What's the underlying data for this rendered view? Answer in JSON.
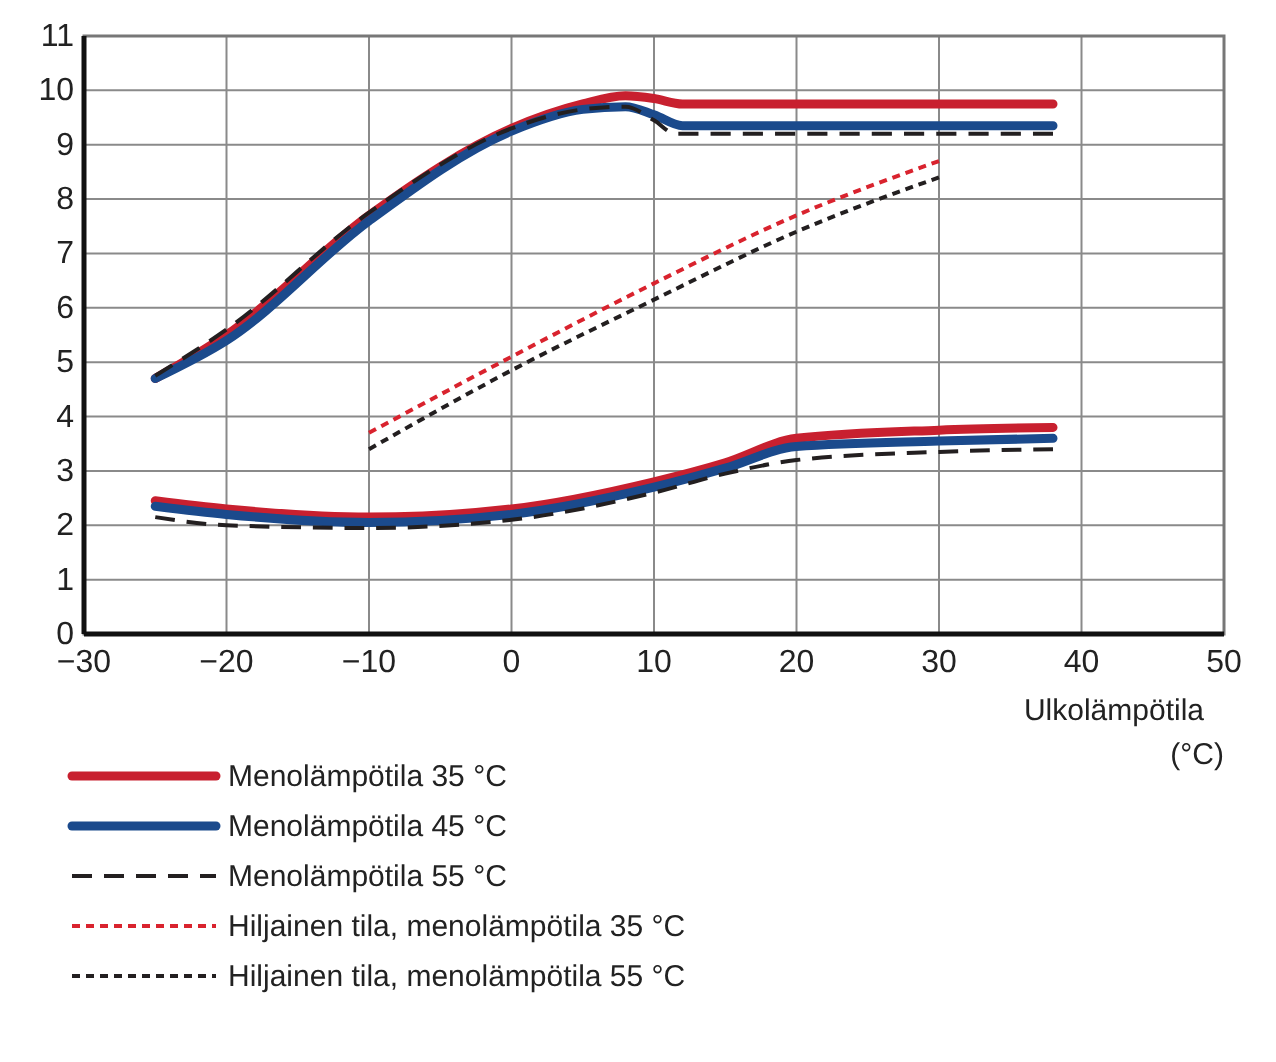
{
  "chart_data": {
    "type": "line",
    "xlabel": "Ulkolämpötila (°C)",
    "xlim": [
      -30,
      50
    ],
    "ylim": [
      0,
      11
    ],
    "xticks": [
      -30,
      -20,
      -10,
      0,
      10,
      20,
      30,
      40,
      50
    ],
    "yticks": [
      0,
      1,
      2,
      3,
      4,
      5,
      6,
      7,
      8,
      9,
      10,
      11
    ],
    "grid": true,
    "legend": "bottom",
    "series": [
      {
        "name": "Menolämpötila 35 °C",
        "color": "#c8202f",
        "line_style": "solid",
        "x": [
          -25,
          -20,
          -10,
          0,
          5,
          8,
          10,
          12,
          38
        ],
        "values": [
          4.7,
          5.5,
          7.7,
          9.3,
          9.75,
          9.9,
          9.85,
          9.75,
          9.75
        ]
      },
      {
        "name": "Menolämpötila 45 °C",
        "color": "#1b4a8c",
        "line_style": "solid",
        "x": [
          -25,
          -20,
          -10,
          0,
          5,
          8,
          10,
          12,
          38
        ],
        "values": [
          4.7,
          5.4,
          7.6,
          9.25,
          9.65,
          9.7,
          9.55,
          9.35,
          9.35
        ]
      },
      {
        "name": "Menolämpötila 55 °C",
        "color": "#231f20",
        "line_style": "dashed",
        "x": [
          -25,
          -20,
          -10,
          0,
          5,
          8,
          10,
          11.5,
          38
        ],
        "values": [
          4.75,
          5.6,
          7.75,
          9.3,
          9.65,
          9.7,
          9.45,
          9.2,
          9.2
        ]
      },
      {
        "name": "Hiljainen tila, menolämpötila 35 °C",
        "color": "#d9232e",
        "line_style": "dotted",
        "x": [
          -10,
          0,
          10,
          20,
          30
        ],
        "values": [
          3.7,
          5.1,
          6.45,
          7.7,
          8.7
        ]
      },
      {
        "name": "Hiljainen tila, menolämpötila 55 °C",
        "color": "#231f20",
        "line_style": "dotted",
        "x": [
          -10,
          0,
          10,
          20,
          30
        ],
        "values": [
          3.4,
          4.85,
          6.15,
          7.4,
          8.4
        ]
      },
      {
        "color": "#c8202f",
        "line_style": "solid",
        "x": [
          -25,
          -20,
          -10,
          0,
          10,
          15,
          20,
          30,
          38
        ],
        "values": [
          2.45,
          2.3,
          2.15,
          2.3,
          2.8,
          3.15,
          3.6,
          3.75,
          3.8
        ]
      },
      {
        "color": "#1b4a8c",
        "line_style": "solid",
        "x": [
          -25,
          -20,
          -10,
          0,
          10,
          15,
          20,
          30,
          38
        ],
        "values": [
          2.35,
          2.2,
          2.05,
          2.2,
          2.7,
          3.05,
          3.45,
          3.55,
          3.6
        ]
      },
      {
        "color": "#231f20",
        "line_style": "dashed",
        "x": [
          -25,
          -20,
          -10,
          0,
          10,
          15,
          20,
          30,
          38
        ],
        "values": [
          2.15,
          2.0,
          1.95,
          2.1,
          2.6,
          2.95,
          3.2,
          3.35,
          3.4
        ]
      }
    ]
  }
}
